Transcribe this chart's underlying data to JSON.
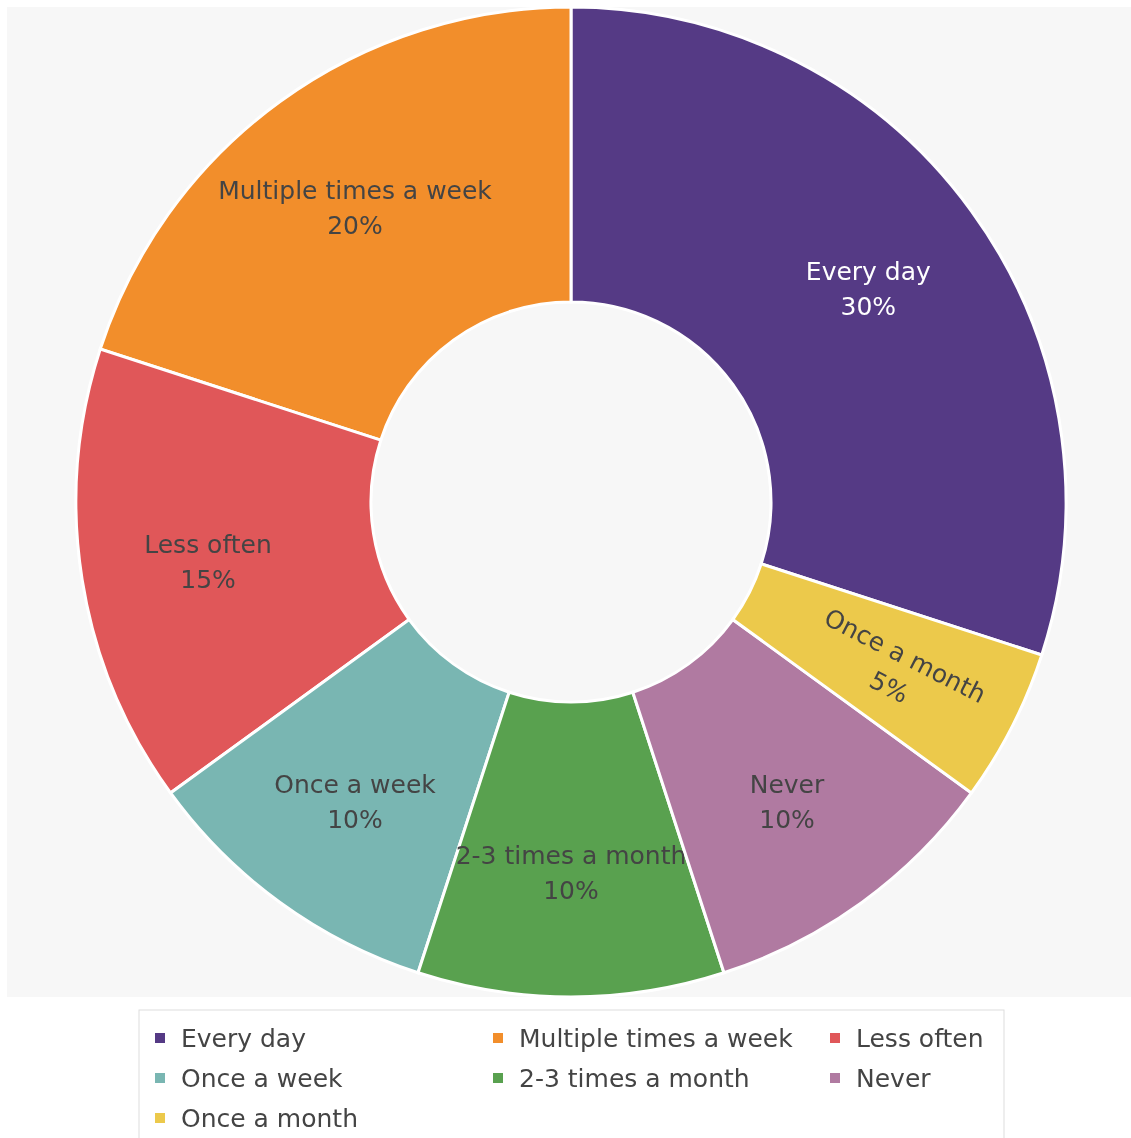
{
  "chart_data": {
    "type": "donut",
    "categories": [
      "Every day",
      "Multiple times a week",
      "Less often",
      "Once a week",
      "2-3 times a month",
      "Never",
      "Once a month"
    ],
    "values": [
      30,
      20,
      15,
      10,
      10,
      10,
      5
    ],
    "value_labels": [
      "30%",
      "20%",
      "15%",
      "10%",
      "10%",
      "10%",
      "5%"
    ],
    "colors": [
      "#553a85",
      "#f28e2b",
      "#e05759",
      "#79b6b2",
      "#59a14f",
      "#b07aa1",
      "#ecc94b"
    ],
    "legend": "bottom"
  }
}
